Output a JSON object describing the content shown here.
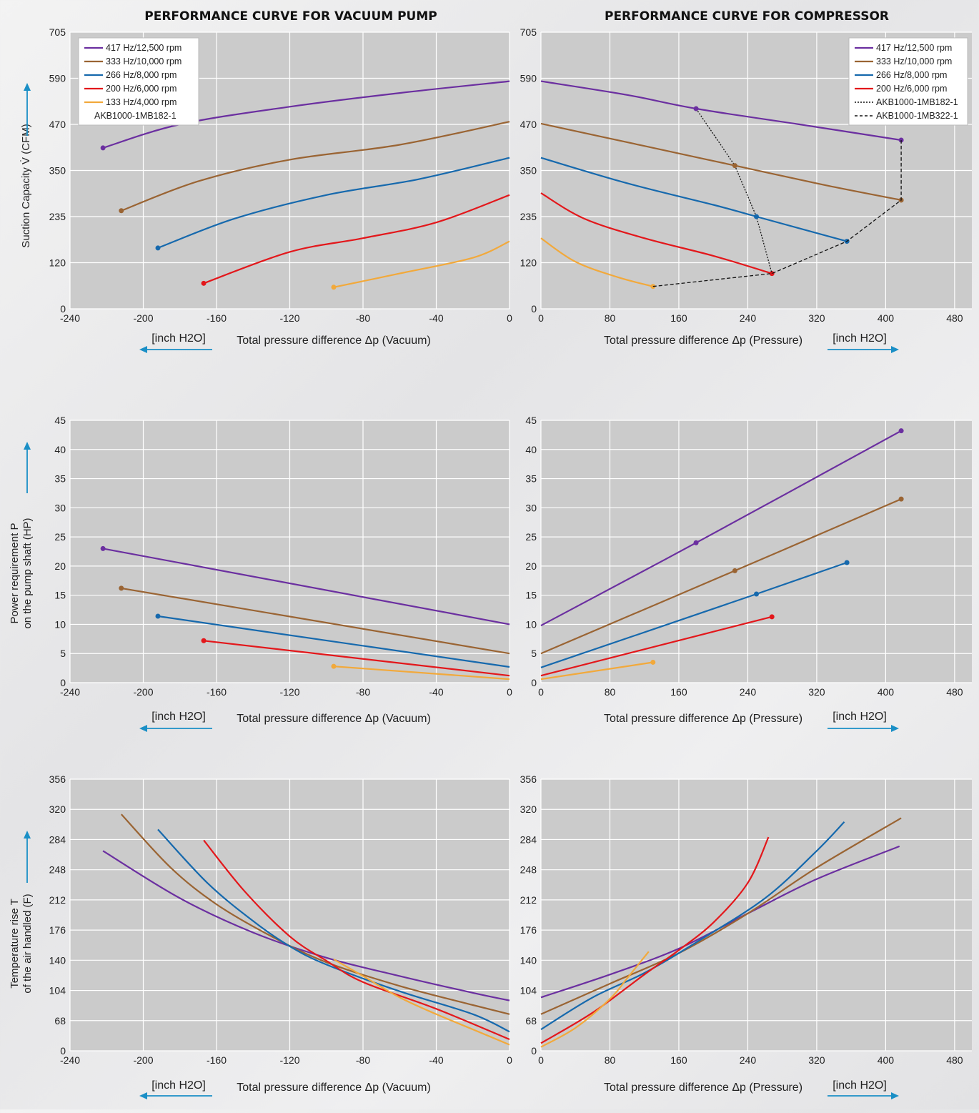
{
  "titles": {
    "left": "PERFORMANCE CURVE FOR VACUUM PUMP",
    "right": "PERFORMANCE CURVE FOR COMPRESSOR"
  },
  "colors": {
    "plot_bg": "#cbcbcb",
    "grid": "#ffffff",
    "arrow": "#1a8fc6",
    "s417": "#6b2fa0",
    "s333": "#9a6433",
    "s266": "#1669ad",
    "s200": "#e3171b",
    "s133": "#f2a93b"
  },
  "legend": [
    {
      "label": "417 Hz/12,500 rpm",
      "color": "#6b2fa0",
      "style": "solid"
    },
    {
      "label": "333 Hz/10,000 rpm",
      "color": "#9a6433",
      "style": "solid"
    },
    {
      "label": "266 Hz/8,000 rpm",
      "color": "#1669ad",
      "style": "solid"
    },
    {
      "label": "200 Hz/6,000 rpm",
      "color": "#e3171b",
      "style": "solid"
    },
    {
      "label": "133 Hz/4,000 rpm",
      "color": "#f2a93b",
      "style": "solid"
    },
    {
      "label": "AKB1000-1MB182-1",
      "color": "#111111",
      "style": "none"
    }
  ],
  "legend_right": [
    {
      "label": "417 Hz/12,500 rpm",
      "color": "#6b2fa0",
      "style": "solid"
    },
    {
      "label": "333 Hz/10,000 rpm",
      "color": "#9a6433",
      "style": "solid"
    },
    {
      "label": "266 Hz/8,000 rpm",
      "color": "#1669ad",
      "style": "solid"
    },
    {
      "label": "200 Hz/6,000 rpm",
      "color": "#e3171b",
      "style": "solid"
    },
    {
      "label": "AKB1000-1MB182-1",
      "color": "#111111",
      "style": "dotted"
    },
    {
      "label": "AKB1000-1MB322-1",
      "color": "#111111",
      "style": "dashed"
    }
  ],
  "axis_text": {
    "vac_xlabel": "Total pressure difference Δp (Vacuum)",
    "pres_xlabel": "Total pressure difference Δp (Pressure)",
    "unit": "[inch H2O]",
    "y1": "Suction Capacity V̇ (CFM)",
    "y2a": "Power requirement P",
    "y2b": "on the pump shaft (HP)",
    "y3a": "Temperature rise T",
    "y3b": "of the air handled (F)"
  },
  "chart_data": [
    {
      "id": "suction-vacuum",
      "type": "line",
      "xlim": [
        -240,
        0
      ],
      "ylim": [
        0,
        705
      ],
      "xticks": [
        "-240",
        "-200",
        "-160",
        "-120",
        "-80",
        "-40",
        "0"
      ],
      "yticks": [
        "0",
        "120",
        "235",
        "350",
        "470",
        "590",
        "705"
      ],
      "series": [
        {
          "name": "417 Hz/12,500 rpm",
          "color": "#6b2fa0",
          "end_marker": "start",
          "points": [
            [
              -222,
              410
            ],
            [
              -180,
              470
            ],
            [
              -120,
              515
            ],
            [
              -60,
              550
            ],
            [
              0,
              580
            ]
          ]
        },
        {
          "name": "333 Hz/10,000 rpm",
          "color": "#9a6433",
          "end_marker": "start",
          "points": [
            [
              -212,
              250
            ],
            [
              -170,
              325
            ],
            [
              -120,
              380
            ],
            [
              -60,
              418
            ],
            [
              0,
              477
            ]
          ]
        },
        {
          "name": "266 Hz/8,000 rpm",
          "color": "#1669ad",
          "end_marker": "start",
          "points": [
            [
              -192,
              155
            ],
            [
              -150,
              230
            ],
            [
              -100,
              290
            ],
            [
              -50,
              330
            ],
            [
              0,
              385
            ]
          ]
        },
        {
          "name": "200 Hz/6,000 rpm",
          "color": "#e3171b",
          "end_marker": "start",
          "points": [
            [
              -167,
              65
            ],
            [
              -120,
              145
            ],
            [
              -80,
              180
            ],
            [
              -40,
              220
            ],
            [
              0,
              290
            ]
          ]
        },
        {
          "name": "133 Hz/4,000 rpm",
          "color": "#f2a93b",
          "end_marker": "start",
          "points": [
            [
              -96,
              55
            ],
            [
              -60,
              90
            ],
            [
              -20,
              130
            ],
            [
              0,
              172
            ]
          ]
        }
      ]
    },
    {
      "id": "suction-pressure",
      "type": "line",
      "xlim": [
        0,
        500
      ],
      "ylim": [
        0,
        705
      ],
      "xticks": [
        "0",
        "80",
        "160",
        "240",
        "320",
        "400",
        "480"
      ],
      "yticks": [
        "0",
        "120",
        "235",
        "350",
        "470",
        "590",
        "705"
      ],
      "series": [
        {
          "name": "417 Hz/12,500 rpm",
          "color": "#6b2fa0",
          "end_marker": "end",
          "points": [
            [
              0,
              580
            ],
            [
              100,
              545
            ],
            [
              180,
              510
            ],
            [
              300,
              470
            ],
            [
              418,
              430
            ]
          ]
        },
        {
          "name": "333 Hz/10,000 rpm",
          "color": "#9a6433",
          "end_marker": "end",
          "points": [
            [
              0,
              472
            ],
            [
              120,
              415
            ],
            [
              225,
              365
            ],
            [
              330,
              315
            ],
            [
              418,
              277
            ]
          ]
        },
        {
          "name": "266 Hz/8,000 rpm",
          "color": "#1669ad",
          "end_marker": "end",
          "points": [
            [
              0,
              385
            ],
            [
              100,
              320
            ],
            [
              200,
              265
            ],
            [
              250,
              235
            ],
            [
              355,
              172
            ]
          ]
        },
        {
          "name": "200 Hz/6,000 rpm",
          "color": "#e3171b",
          "end_marker": "end",
          "points": [
            [
              0,
              295
            ],
            [
              50,
              230
            ],
            [
              120,
              180
            ],
            [
              200,
              135
            ],
            [
              268,
              90
            ]
          ]
        },
        {
          "name": "133 Hz/4,000 rpm",
          "color": "#f2a93b",
          "end_marker": "end",
          "points": [
            [
              0,
              180
            ],
            [
              40,
              120
            ],
            [
              90,
              80
            ],
            [
              130,
              57
            ]
          ]
        }
      ],
      "dotted": [
        [
          180,
          510
        ],
        [
          225,
          365
        ],
        [
          250,
          235
        ],
        [
          268,
          90
        ]
      ],
      "dotted_markers": [
        [
          180,
          510
        ],
        [
          225,
          365
        ],
        [
          250,
          235
        ]
      ],
      "dashed": [
        [
          130,
          57
        ],
        [
          268,
          90
        ],
        [
          355,
          172
        ],
        [
          418,
          277
        ],
        [
          418,
          430
        ]
      ]
    },
    {
      "id": "power-vacuum",
      "type": "line",
      "xlim": [
        -240,
        0
      ],
      "ylim": [
        0,
        45
      ],
      "xticks": [
        "-240",
        "-200",
        "-160",
        "-120",
        "-80",
        "-40",
        "0"
      ],
      "yticks": [
        "0",
        "5",
        "10",
        "15",
        "20",
        "25",
        "30",
        "35",
        "40",
        "45"
      ],
      "series": [
        {
          "name": "417 Hz/12,500 rpm",
          "color": "#6b2fa0",
          "end_marker": "start",
          "points": [
            [
              -222,
              23
            ],
            [
              0,
              10
            ]
          ]
        },
        {
          "name": "333 Hz/10,000 rpm",
          "color": "#9a6433",
          "end_marker": "start",
          "points": [
            [
              -212,
              16.2
            ],
            [
              0,
              5
            ]
          ]
        },
        {
          "name": "266 Hz/8,000 rpm",
          "color": "#1669ad",
          "end_marker": "start",
          "points": [
            [
              -192,
              11.4
            ],
            [
              0,
              2.7
            ]
          ]
        },
        {
          "name": "200 Hz/6,000 rpm",
          "color": "#e3171b",
          "end_marker": "start",
          "points": [
            [
              -167,
              7.2
            ],
            [
              0,
              1.2
            ]
          ]
        },
        {
          "name": "133 Hz/4,000 rpm",
          "color": "#f2a93b",
          "end_marker": "start",
          "points": [
            [
              -96,
              2.8
            ],
            [
              0,
              0.6
            ]
          ]
        }
      ]
    },
    {
      "id": "power-pressure",
      "type": "line",
      "xlim": [
        0,
        500
      ],
      "ylim": [
        0,
        45
      ],
      "xticks": [
        "0",
        "80",
        "160",
        "240",
        "320",
        "400",
        "480"
      ],
      "yticks": [
        "0",
        "5",
        "10",
        "15",
        "20",
        "25",
        "30",
        "35",
        "40",
        "45"
      ],
      "series": [
        {
          "name": "417 Hz/12,500 rpm",
          "color": "#6b2fa0",
          "end_marker": "end",
          "points": [
            [
              0,
              9.8
            ],
            [
              180,
              24
            ],
            [
              418,
              43.2
            ]
          ],
          "markers": [
            [
              180,
              24
            ]
          ]
        },
        {
          "name": "333 Hz/10,000 rpm",
          "color": "#9a6433",
          "end_marker": "end",
          "points": [
            [
              0,
              5
            ],
            [
              225,
              19.2
            ],
            [
              418,
              31.5
            ]
          ],
          "markers": [
            [
              225,
              19.2
            ]
          ]
        },
        {
          "name": "266 Hz/8,000 rpm",
          "color": "#1669ad",
          "end_marker": "end",
          "points": [
            [
              0,
              2.6
            ],
            [
              250,
              15.2
            ],
            [
              355,
              20.6
            ]
          ],
          "markers": [
            [
              250,
              15.2
            ]
          ]
        },
        {
          "name": "200 Hz/6,000 rpm",
          "color": "#e3171b",
          "end_marker": "end",
          "points": [
            [
              0,
              1.2
            ],
            [
              268,
              11.3
            ]
          ]
        },
        {
          "name": "133 Hz/4,000 rpm",
          "color": "#f2a93b",
          "end_marker": "end",
          "points": [
            [
              0,
              0.6
            ],
            [
              130,
              3.5
            ]
          ]
        }
      ]
    },
    {
      "id": "temp-vacuum",
      "type": "line",
      "xlim": [
        -240,
        0
      ],
      "ylim": [
        0,
        356
      ],
      "xticks": [
        "-240",
        "-200",
        "-160",
        "-120",
        "-80",
        "-40",
        "0"
      ],
      "yticks": [
        "0",
        "68",
        "104",
        "140",
        "176",
        "212",
        "248",
        "284",
        "320",
        "356"
      ],
      "series": [
        {
          "name": "417 Hz/12,500 rpm",
          "color": "#6b2fa0",
          "end_marker": "none",
          "points": [
            [
              -222,
              262
            ],
            [
              -180,
              200
            ],
            [
              -140,
              155
            ],
            [
              -100,
              122
            ],
            [
              -60,
              98
            ],
            [
              -20,
              76
            ],
            [
              0,
              66
            ]
          ]
        },
        {
          "name": "333 Hz/10,000 rpm",
          "color": "#9a6433",
          "end_marker": "none",
          "points": [
            [
              -212,
              310
            ],
            [
              -185,
              240
            ],
            [
              -160,
              192
            ],
            [
              -130,
              150
            ],
            [
              -100,
              116
            ],
            [
              -60,
              85
            ],
            [
              -20,
              60
            ],
            [
              0,
              48
            ]
          ]
        },
        {
          "name": "266 Hz/8,000 rpm",
          "color": "#1669ad",
          "end_marker": "none",
          "points": [
            [
              -192,
              290
            ],
            [
              -165,
              220
            ],
            [
              -140,
              170
            ],
            [
              -120,
              137
            ],
            [
              -100,
              113
            ],
            [
              -60,
              78
            ],
            [
              -20,
              48
            ],
            [
              0,
              25
            ]
          ]
        },
        {
          "name": "200 Hz/6,000 rpm",
          "color": "#e3171b",
          "end_marker": "none",
          "points": [
            [
              -167,
              276
            ],
            [
              -145,
              210
            ],
            [
              -120,
              150
            ],
            [
              -100,
              118
            ],
            [
              -80,
              90
            ],
            [
              -40,
              55
            ],
            [
              0,
              15
            ]
          ]
        },
        {
          "name": "133 Hz/4,000 rpm",
          "color": "#f2a93b",
          "end_marker": "none",
          "points": [
            [
              -96,
              120
            ],
            [
              -80,
              98
            ],
            [
              -60,
              70
            ],
            [
              -40,
              48
            ],
            [
              -20,
              28
            ],
            [
              0,
              8
            ]
          ]
        }
      ]
    },
    {
      "id": "temp-pressure",
      "type": "line",
      "xlim": [
        0,
        500
      ],
      "ylim": [
        0,
        356
      ],
      "xticks": [
        "0",
        "80",
        "160",
        "240",
        "320",
        "400",
        "480"
      ],
      "yticks": [
        "0",
        "68",
        "104",
        "140",
        "176",
        "212",
        "248",
        "284",
        "320",
        "356"
      ],
      "series": [
        {
          "name": "417 Hz/12,500 rpm",
          "color": "#6b2fa0",
          "end_marker": "none",
          "points": [
            [
              0,
              70
            ],
            [
              80,
              100
            ],
            [
              160,
              134
            ],
            [
              240,
              180
            ],
            [
              320,
              225
            ],
            [
              416,
              268
            ]
          ]
        },
        {
          "name": "333 Hz/10,000 rpm",
          "color": "#9a6433",
          "end_marker": "none",
          "points": [
            [
              0,
              48
            ],
            [
              80,
              88
            ],
            [
              160,
              128
            ],
            [
              240,
              180
            ],
            [
              320,
              240
            ],
            [
              418,
              305
            ]
          ]
        },
        {
          "name": "266 Hz/8,000 rpm",
          "color": "#1669ad",
          "end_marker": "none",
          "points": [
            [
              0,
              28
            ],
            [
              60,
              70
            ],
            [
              120,
              102
            ],
            [
              180,
              142
            ],
            [
              260,
              200
            ],
            [
              320,
              262
            ],
            [
              352,
              300
            ]
          ]
        },
        {
          "name": "200 Hz/6,000 rpm",
          "color": "#e3171b",
          "end_marker": "none",
          "points": [
            [
              0,
              10
            ],
            [
              60,
              50
            ],
            [
              120,
              100
            ],
            [
              160,
              132
            ],
            [
              200,
              168
            ],
            [
              240,
              220
            ],
            [
              264,
              280
            ]
          ]
        },
        {
          "name": "133 Hz/4,000 rpm",
          "color": "#f2a93b",
          "end_marker": "none",
          "points": [
            [
              0,
              5
            ],
            [
              40,
              30
            ],
            [
              80,
              68
            ],
            [
              100,
              95
            ],
            [
              125,
              130
            ]
          ]
        }
      ]
    }
  ]
}
